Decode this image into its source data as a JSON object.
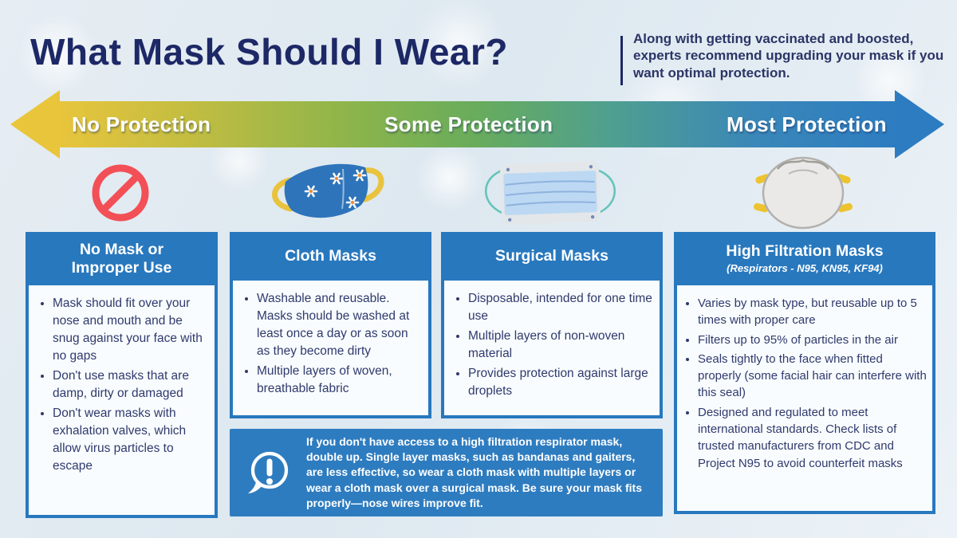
{
  "colors": {
    "navy": "#1d2866",
    "card_blue": "#2878be",
    "banner_blue": "#2e7cc0",
    "arrow_yellow": "#e9c53c",
    "arrow_green": "#68ac5c",
    "arrow_blue": "#2d7cc1",
    "prohibition_red": "#f25056",
    "body_text": "#2f3a6d"
  },
  "header": {
    "title": "What Mask Should I Wear?",
    "subtitle": "Along with getting vaccinated and boosted, experts recommend upgrading your mask if you want optimal protection."
  },
  "protection_scale": {
    "levels": [
      {
        "label": "No Protection"
      },
      {
        "label": "Some Protection"
      },
      {
        "label": "Most Protection"
      }
    ]
  },
  "icons": [
    {
      "name": "no-mask-icon"
    },
    {
      "name": "cloth-mask-icon"
    },
    {
      "name": "surgical-mask-icon"
    },
    {
      "name": "n95-respirator-icon"
    }
  ],
  "cards": [
    {
      "title": "No Mask or Improper Use",
      "bullets": [
        "Mask should fit over your nose and mouth and be snug against your face with no gaps",
        "Don't use masks that are damp, dirty or damaged",
        "Don't wear masks with exhalation valves, which allow virus particles to escape"
      ]
    },
    {
      "title": "Cloth Masks",
      "bullets": [
        "Washable and reusable. Masks should be washed at least once a day or as soon as they become dirty",
        "Multiple layers of woven, breathable fabric"
      ]
    },
    {
      "title": "Surgical Masks",
      "bullets": [
        "Disposable, intended for one time use",
        "Multiple layers of non-woven material",
        "Provides protection against large droplets"
      ]
    },
    {
      "title": "High Filtration Masks",
      "subtitle": "(Respirators - N95, KN95, KF94)",
      "bullets": [
        "Varies by mask type, but reusable up to 5 times with proper care",
        "Filters up to 95% of particles in the air",
        "Seals tightly to the face when fitted properly (some facial hair can interfere with this seal)",
        "Designed and regulated to meet international standards. Check lists of trusted manufacturers from CDC and Project N95 to avoid counterfeit masks"
      ]
    }
  ],
  "alert_banner": {
    "text": "If you don't have access to a high filtration respirator mask, double up. Single layer masks, such as bandanas and gaiters, are less effective, so wear a cloth mask with multiple layers or wear a cloth mask over a surgical mask. Be sure your mask fits properly—nose wires improve fit."
  }
}
